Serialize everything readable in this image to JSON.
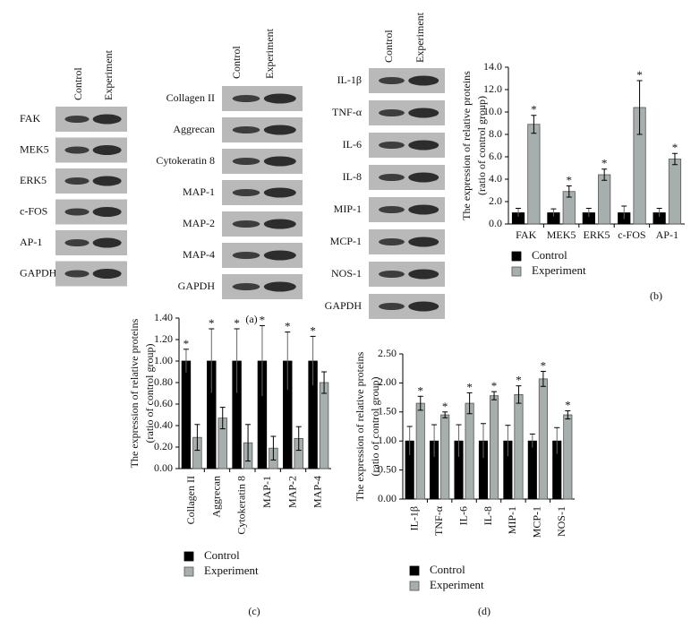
{
  "blots": {
    "panel_label": "(a)",
    "groups": [
      {
        "columns": [
          "Control",
          "Experiment"
        ],
        "rows": [
          "FAK",
          "MEK5",
          "ERK5",
          "c-FOS",
          "AP-1",
          "GAPDH"
        ]
      },
      {
        "columns": [
          "Control",
          "Experiment"
        ],
        "rows": [
          "Collagen II",
          "Aggrecan",
          "Cytokeratin 8",
          "MAP-1",
          "MAP-2",
          "MAP-4",
          "GAPDH"
        ]
      },
      {
        "columns": [
          "Control",
          "Experiment"
        ],
        "rows": [
          "IL-1β",
          "TNF-α",
          "IL-6",
          "IL-8",
          "MIP-1",
          "MCP-1",
          "NOS-1",
          "GAPDH"
        ]
      }
    ]
  },
  "chart_data": [
    {
      "type": "bar",
      "panel_label": "(b)",
      "y_label": [
        "The expression of relative proteins",
        "(ratio of control group)"
      ],
      "categories": [
        "FAK",
        "MEK5",
        "ERK5",
        "c-FOS",
        "AP-1"
      ],
      "series": [
        {
          "name": "Control",
          "color": "#000000",
          "values": [
            1,
            1,
            1,
            1,
            1
          ],
          "errors": [
            0.4,
            0.35,
            0.4,
            0.6,
            0.4
          ]
        },
        {
          "name": "Experiment",
          "color": "#a6aeae",
          "values": [
            8.9,
            2.9,
            4.4,
            10.4,
            5.8
          ],
          "errors": [
            0.8,
            0.5,
            0.5,
            2.4,
            0.5
          ],
          "markers": [
            "*",
            "*",
            "*",
            "*",
            "*"
          ]
        }
      ],
      "ylim": [
        0,
        14
      ],
      "yticks": [
        {
          "value": 0,
          "label": "0.0"
        },
        {
          "value": 2,
          "label": "2.0"
        },
        {
          "value": 4,
          "label": "4.0"
        },
        {
          "value": 6,
          "label": "6.0"
        },
        {
          "value": 8,
          "label": "8.0"
        },
        {
          "value": 10,
          "label": "10.0"
        },
        {
          "value": 12,
          "label": "12.0"
        },
        {
          "value": 14,
          "label": "14.0"
        }
      ]
    },
    {
      "type": "bar",
      "panel_label": "(c)",
      "y_label": [
        "The expression of relative proteins",
        "(ratio of control group)"
      ],
      "categories": [
        "Collagen II",
        "Aggrecan",
        "Cytokeratin 8",
        "MAP-1",
        "MAP-2",
        "MAP-4"
      ],
      "series": [
        {
          "name": "Control",
          "color": "#000000",
          "values": [
            1,
            1,
            1,
            1,
            1,
            1
          ],
          "errors": [
            0.11,
            0.3,
            0.3,
            0.33,
            0.27,
            0.23
          ],
          "markers": [
            "*",
            "*",
            "*",
            "*",
            "*",
            "*"
          ]
        },
        {
          "name": "Experiment",
          "color": "#a6aeae",
          "values": [
            0.29,
            0.47,
            0.24,
            0.19,
            0.28,
            0.8
          ],
          "errors": [
            0.12,
            0.1,
            0.17,
            0.11,
            0.11,
            0.1
          ]
        }
      ],
      "ylim": [
        0,
        1.4
      ],
      "yticks": [
        {
          "value": 0,
          "label": "0.00"
        },
        {
          "value": 0.2,
          "label": "0.20"
        },
        {
          "value": 0.4,
          "label": "0.40"
        },
        {
          "value": 0.6,
          "label": "0.60"
        },
        {
          "value": 0.8,
          "label": "0.80"
        },
        {
          "value": 1,
          "label": "1.00"
        },
        {
          "value": 1.2,
          "label": "1.20"
        },
        {
          "value": 1.4,
          "label": "1.40"
        }
      ]
    },
    {
      "type": "bar",
      "panel_label": "(d)",
      "y_label": [
        "The expression of relative proteins",
        "(ratio of control group)"
      ],
      "categories": [
        "IL-1β",
        "TNF-α",
        "IL-6",
        "IL-8",
        "MIP-1",
        "MCP-1",
        "NOS-1"
      ],
      "series": [
        {
          "name": "Control",
          "color": "#000000",
          "values": [
            1,
            1,
            1,
            1,
            1,
            1,
            1
          ],
          "errors": [
            0.25,
            0.28,
            0.28,
            0.3,
            0.27,
            0.12,
            0.23
          ]
        },
        {
          "name": "Experiment",
          "color": "#a6aeae",
          "values": [
            1.65,
            1.45,
            1.65,
            1.78,
            1.8,
            2.07,
            1.45
          ],
          "errors": [
            0.12,
            0.05,
            0.18,
            0.07,
            0.15,
            0.13,
            0.07
          ],
          "markers": [
            "*",
            "*",
            "*",
            "*",
            "*",
            "*",
            "*"
          ]
        }
      ],
      "ylim": [
        0,
        2.5
      ],
      "yticks": [
        {
          "value": 0,
          "label": "0.00"
        },
        {
          "value": 0.5,
          "label": "0.50"
        },
        {
          "value": 1,
          "label": "1.00"
        },
        {
          "value": 1.5,
          "label": "1.50"
        },
        {
          "value": 2,
          "label": "2.00"
        },
        {
          "value": 2.5,
          "label": "2.50"
        }
      ]
    }
  ]
}
